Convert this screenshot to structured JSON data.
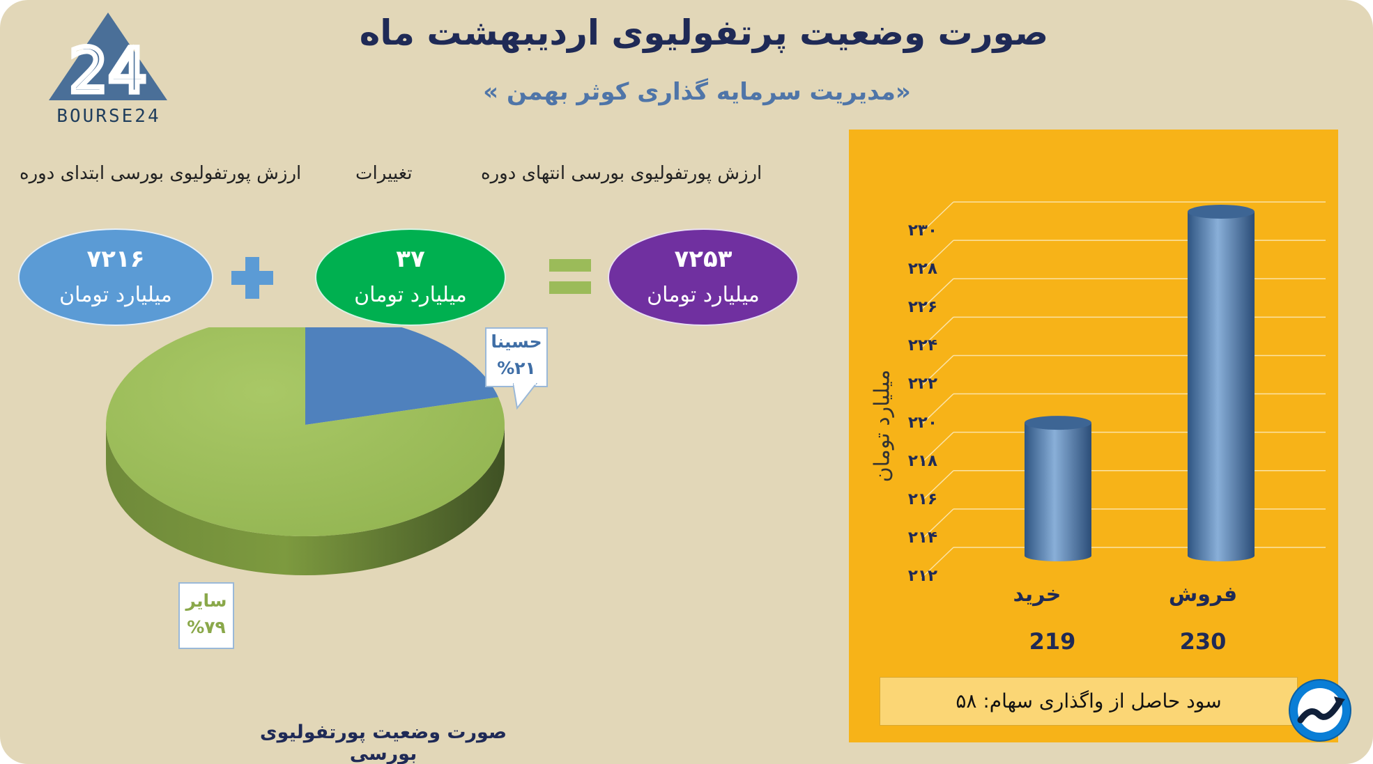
{
  "header": {
    "title": "صورت وضعیت پرتفولیوی اردیبهشت ماه",
    "subtitle": "«مدیریت سرمایه گذاری کوثر بهمن »"
  },
  "logo": {
    "text": "BOURSE24",
    "mark": "24"
  },
  "equation": {
    "labels": {
      "start": "ارزش پورتفولیوی بورسی ابتدای دوره",
      "change": "تغییرات",
      "end": "ارزش پورتفولیوی بورسی انتهای دوره"
    },
    "start": {
      "value": "۷۲۱۶",
      "unit": "میلیارد تومان",
      "color": "#5b9bd5"
    },
    "change": {
      "value": "۳۷",
      "unit": "میلیارد تومان",
      "color": "#00b050"
    },
    "end": {
      "value": "۷۲۵۳",
      "unit": "میلیارد تومان",
      "color": "#7030a0"
    },
    "plus_color": "#5b9bd5",
    "equals_color": "#9bbb59"
  },
  "chart_data": [
    {
      "type": "pie",
      "title": "صورت وضعیت پورتفولیوی بورسی",
      "slices": [
        {
          "name": "حسینا",
          "value": 21,
          "label": "%۲۱",
          "color": "#4f81bd"
        },
        {
          "name": "سایر",
          "value": 79,
          "label": "%۷۹",
          "color": "#9bbb59"
        }
      ]
    },
    {
      "type": "bar",
      "ylabel": "میلیارد تومان",
      "categories": [
        "خرید",
        "فروش"
      ],
      "values": [
        219,
        230
      ],
      "value_labels": [
        "219",
        "230"
      ],
      "ylim": [
        212,
        230
      ],
      "yticks": [
        "۲۱۲",
        "۲۱۴",
        "۲۱۶",
        "۲۱۸",
        "۲۲۰",
        "۲۲۲",
        "۲۲۴",
        "۲۲۶",
        "۲۲۸",
        "۲۳۰"
      ],
      "grid": true,
      "bar_color": "#4f81bd",
      "background": "#f7b318"
    }
  ],
  "profit": {
    "text": "سود حاصل از واگذاری سهام: ۵۸"
  }
}
